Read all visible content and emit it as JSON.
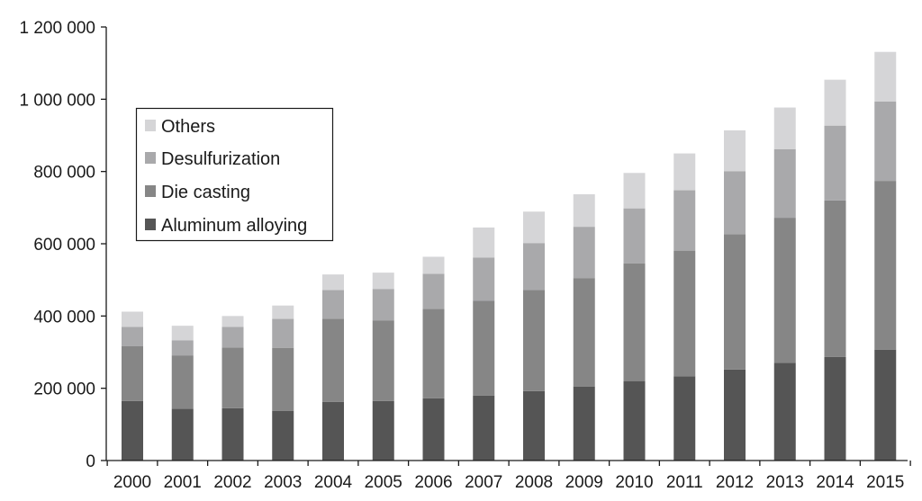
{
  "chart_data": {
    "type": "bar",
    "stacked": true,
    "title": "",
    "xlabel": "",
    "ylabel": "",
    "categories": [
      "2000",
      "2001",
      "2002",
      "2003",
      "2004",
      "2005",
      "2006",
      "2007",
      "2008",
      "2009",
      "2010",
      "2011",
      "2012",
      "2013",
      "2014",
      "2015"
    ],
    "series": [
      {
        "name": "Aluminum alloying",
        "color": "#555555",
        "values": [
          165000,
          143000,
          145000,
          137000,
          162000,
          165000,
          172000,
          180000,
          192000,
          205000,
          220000,
          233000,
          252000,
          270000,
          287000,
          307000
        ]
      },
      {
        "name": "Die casting",
        "color": "#868686",
        "values": [
          152000,
          148000,
          168000,
          175000,
          230000,
          223000,
          248000,
          262000,
          280000,
          300000,
          326000,
          348000,
          374000,
          402000,
          433000,
          467000
        ]
      },
      {
        "name": "Desulfurization",
        "color": "#a9a9ab",
        "values": [
          53000,
          42000,
          57000,
          80000,
          80000,
          87000,
          97000,
          120000,
          130000,
          142000,
          152000,
          167000,
          175000,
          190000,
          207000,
          220000
        ]
      },
      {
        "name": "Others",
        "color": "#d5d5d7",
        "values": [
          42000,
          40000,
          30000,
          37000,
          43000,
          45000,
          47000,
          83000,
          87000,
          90000,
          98000,
          102000,
          113000,
          115000,
          127000,
          137000
        ]
      }
    ],
    "ylim": [
      0,
      1200000
    ],
    "yticks": [
      0,
      200000,
      400000,
      600000,
      800000,
      1000000,
      1200000
    ],
    "ytick_labels": [
      "0",
      "200 000",
      "400 000",
      "600 000",
      "800 000",
      "1 000 000",
      "1 200 000"
    ],
    "grid": false,
    "legend_position": "top-left",
    "legend_order": [
      "Others",
      "Desulfurization",
      "Die casting",
      "Aluminum alloying"
    ]
  }
}
